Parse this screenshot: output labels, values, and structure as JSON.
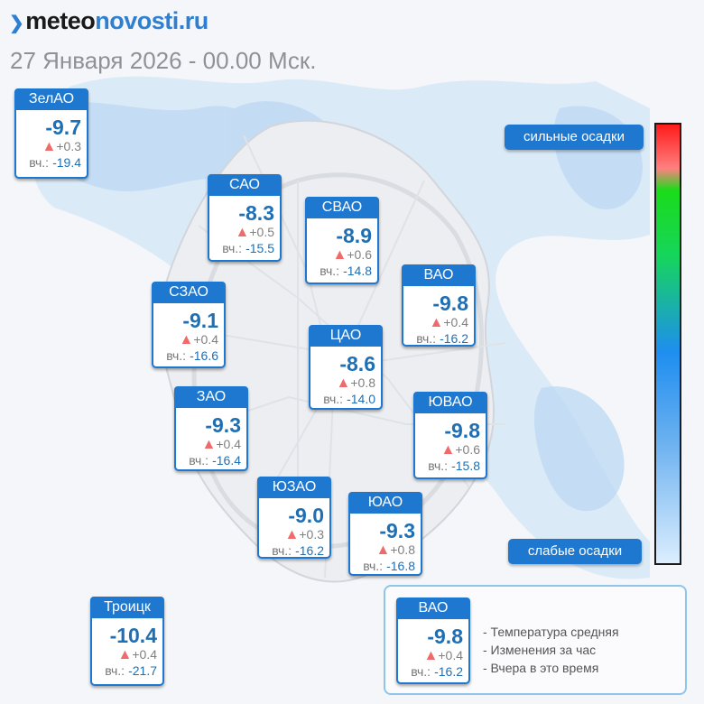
{
  "brand": {
    "part1": "meteo",
    "part2": "novosti.ru"
  },
  "datetime": "27 Января 2026 - 00.00 Мск.",
  "colors": {
    "accent": "#1e78d0",
    "temp": "#1f6fb4",
    "up_arrow": "#ef6a6a"
  },
  "icons": {
    "up": "triangle-up-icon",
    "brand_mark": "chevron-right-icon"
  },
  "cards": [
    {
      "name": "ЗелАО",
      "temp": "-9.7",
      "change": "+0.3",
      "yesterday_label": "вч.:",
      "yesterday": "-19.4"
    },
    {
      "name": "САО",
      "temp": "-8.3",
      "change": "+0.5",
      "yesterday_label": "вч.:",
      "yesterday": "-15.5"
    },
    {
      "name": "СВАО",
      "temp": "-8.9",
      "change": "+0.6",
      "yesterday_label": "вч.:",
      "yesterday": "-14.8"
    },
    {
      "name": "ВАО",
      "temp": "-9.8",
      "change": "+0.4",
      "yesterday_label": "вч.:",
      "yesterday": "-16.2"
    },
    {
      "name": "СЗАО",
      "temp": "-9.1",
      "change": "+0.4",
      "yesterday_label": "вч.:",
      "yesterday": "-16.6"
    },
    {
      "name": "ЦАО",
      "temp": "-8.6",
      "change": "+0.8",
      "yesterday_label": "вч.:",
      "yesterday": "-14.0"
    },
    {
      "name": "ЗАО",
      "temp": "-9.3",
      "change": "+0.4",
      "yesterday_label": "вч.:",
      "yesterday": "-16.4"
    },
    {
      "name": "ЮВАО",
      "temp": "-9.8",
      "change": "+0.6",
      "yesterday_label": "вч.:",
      "yesterday": "-15.8"
    },
    {
      "name": "ЮЗАО",
      "temp": "-9.0",
      "change": "+0.3",
      "yesterday_label": "вч.:",
      "yesterday": "-16.2"
    },
    {
      "name": "ЮАО",
      "temp": "-9.3",
      "change": "+0.8",
      "yesterday_label": "вч.:",
      "yesterday": "-16.8"
    },
    {
      "name": "Троицк",
      "temp": "-10.4",
      "change": "+0.4",
      "yesterday_label": "вч.:",
      "yesterday": "-21.7"
    }
  ],
  "scale": {
    "top_label": "сильные осадки",
    "bottom_label": "слабые осадки"
  },
  "legend": {
    "sample": {
      "name": "ВАО",
      "temp": "-9.8",
      "change": "+0.4",
      "yesterday_label": "вч.:",
      "yesterday": "-16.2"
    },
    "lines": [
      "- Температура средняя",
      "- Изменения за час",
      "- Вчера в это время"
    ]
  }
}
